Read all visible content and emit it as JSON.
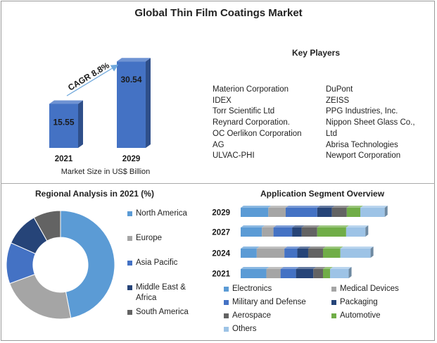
{
  "title": "Global Thin Film Coatings Market",
  "key_players": {
    "title": "Key Players",
    "col1": [
      "Materion Corporation",
      "IDEX",
      "Torr Scientific Ltd",
      "Reynard Corporation.",
      "OC Oerlikon Corporation",
      "AG",
      "ULVAC-PHI"
    ],
    "col2": [
      "DuPont",
      "ZEISS",
      "PPG Industries, Inc.",
      "Nippon Sheet Glass Co.,",
      "Ltd",
      "Abrisa Technologies",
      "Newport Corporation"
    ]
  },
  "colors": {
    "bar_front": "#4472c4",
    "bar_side": "#2f4f8a",
    "bar_top": "#6f93d3",
    "arrow": "#6fa8dc"
  },
  "chart_data": [
    {
      "type": "bar",
      "categories": [
        "2021",
        "2029"
      ],
      "values": [
        15.55,
        30.54
      ],
      "value_labels": [
        "15.55",
        "30.54"
      ],
      "caption": "Market Size in US$ Billion",
      "annotation": "CAGR 8.8%"
    },
    {
      "type": "pie",
      "title": "Regional Analysis in 2021 (%)",
      "donut": true,
      "slices": [
        {
          "name": "North America",
          "value": 46,
          "color": "#5b9bd5"
        },
        {
          "name": "Europe",
          "value": 22,
          "color": "#a5a5a5"
        },
        {
          "name": "Asia Pacific",
          "value": 12,
          "color": "#4472c4"
        },
        {
          "name": "Middle East & Africa",
          "value": 10,
          "color": "#264478"
        },
        {
          "name": "South America",
          "value": 8,
          "color": "#636363"
        }
      ]
    },
    {
      "type": "bar",
      "stacked": true,
      "orientation": "horizontal",
      "title": "Application Segment Overview",
      "categories": [
        "2029",
        "2027",
        "2024",
        "2021"
      ],
      "series": [
        {
          "name": "Electronics",
          "color": "#5b9bd5",
          "values": [
            43,
            33,
            25,
            40
          ]
        },
        {
          "name": "Medical Devices",
          "color": "#a5a5a5",
          "values": [
            27,
            18,
            43,
            22
          ]
        },
        {
          "name": "Military and Defense",
          "color": "#4472c4",
          "values": [
            49,
            29,
            20,
            24
          ]
        },
        {
          "name": "Packaging",
          "color": "#264478",
          "values": [
            23,
            15,
            17,
            27
          ]
        },
        {
          "name": "Aerospace",
          "color": "#636363",
          "values": [
            23,
            24,
            23,
            15
          ]
        },
        {
          "name": "Automotive",
          "color": "#70ad47",
          "values": [
            21,
            45,
            27,
            11
          ]
        },
        {
          "name": "Others",
          "color": "#9dc3e6",
          "values": [
            38,
            30,
            47,
            29
          ]
        }
      ]
    }
  ]
}
